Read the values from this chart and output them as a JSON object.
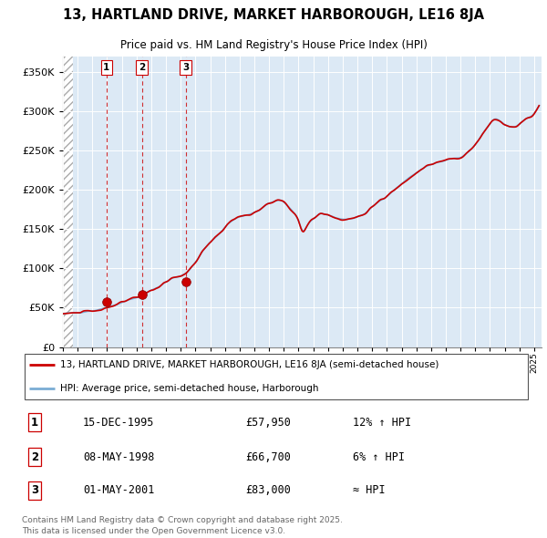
{
  "title": "13, HARTLAND DRIVE, MARKET HARBOROUGH, LE16 8JA",
  "subtitle": "Price paid vs. HM Land Registry's House Price Index (HPI)",
  "hpi_label": "HPI: Average price, semi-detached house, Harborough",
  "property_label": "13, HARTLAND DRIVE, MARKET HARBOROUGH, LE16 8JA (semi-detached house)",
  "footer": "Contains HM Land Registry data © Crown copyright and database right 2025.\nThis data is licensed under the Open Government Licence v3.0.",
  "sales": [
    {
      "label": "1",
      "date": "15-DEC-1995",
      "price": 57950,
      "year": 1995.958,
      "note": "12% ↑ HPI"
    },
    {
      "label": "2",
      "date": "08-MAY-1998",
      "price": 66700,
      "year": 1998.356,
      "note": "6% ↑ HPI"
    },
    {
      "label": "3",
      "date": "01-MAY-2001",
      "price": 83000,
      "year": 2001.331,
      "note": "≈ HPI"
    }
  ],
  "hpi_color": "#7aadd4",
  "price_color": "#cc0000",
  "sale_marker_color": "#cc0000",
  "sale_vline_color": "#cc0000",
  "bg_plot_color": "#dce9f5",
  "grid_color": "#ffffff",
  "ylim": [
    0,
    370000
  ],
  "yticks": [
    0,
    50000,
    100000,
    150000,
    200000,
    250000,
    300000,
    350000
  ],
  "xlim_start": 1993.0,
  "xlim_end": 2025.5,
  "hatch_end": 1993.7
}
